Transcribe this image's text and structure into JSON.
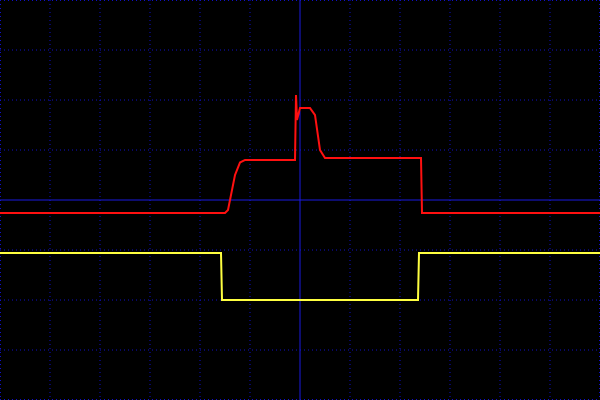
{
  "chart_data": {
    "type": "line",
    "xlim": [
      -6,
      6
    ],
    "ylim": [
      -4,
      4
    ],
    "xticks": [
      -6,
      -5,
      -4,
      -3,
      -2,
      -1,
      0,
      1,
      2,
      3,
      4,
      5,
      6
    ],
    "yticks": [
      -4,
      -3,
      -2,
      -1,
      0,
      1,
      2,
      3,
      4
    ],
    "grid": true,
    "series": [
      {
        "color": "#ff1010",
        "x": [
          -6,
          -1.5,
          -1.44,
          -1.3,
          -1.2,
          -1.1,
          -0.1,
          -0.08,
          -0.06,
          0.0,
          0.2,
          0.3,
          0.4,
          0.5,
          2.42,
          2.44,
          6
        ],
        "values": [
          -0.26,
          -0.26,
          -0.2,
          0.5,
          0.75,
          0.8,
          0.8,
          2.1,
          1.6,
          1.84,
          1.84,
          1.7,
          1.0,
          0.84,
          0.84,
          -0.26,
          -0.26
        ]
      },
      {
        "color": "#ffff40",
        "x": [
          -6,
          -1.58,
          -1.56,
          2.36,
          2.38,
          6
        ],
        "values": [
          -1.06,
          -1.06,
          -2.0,
          -2.0,
          -1.06,
          -1.06
        ]
      }
    ]
  }
}
